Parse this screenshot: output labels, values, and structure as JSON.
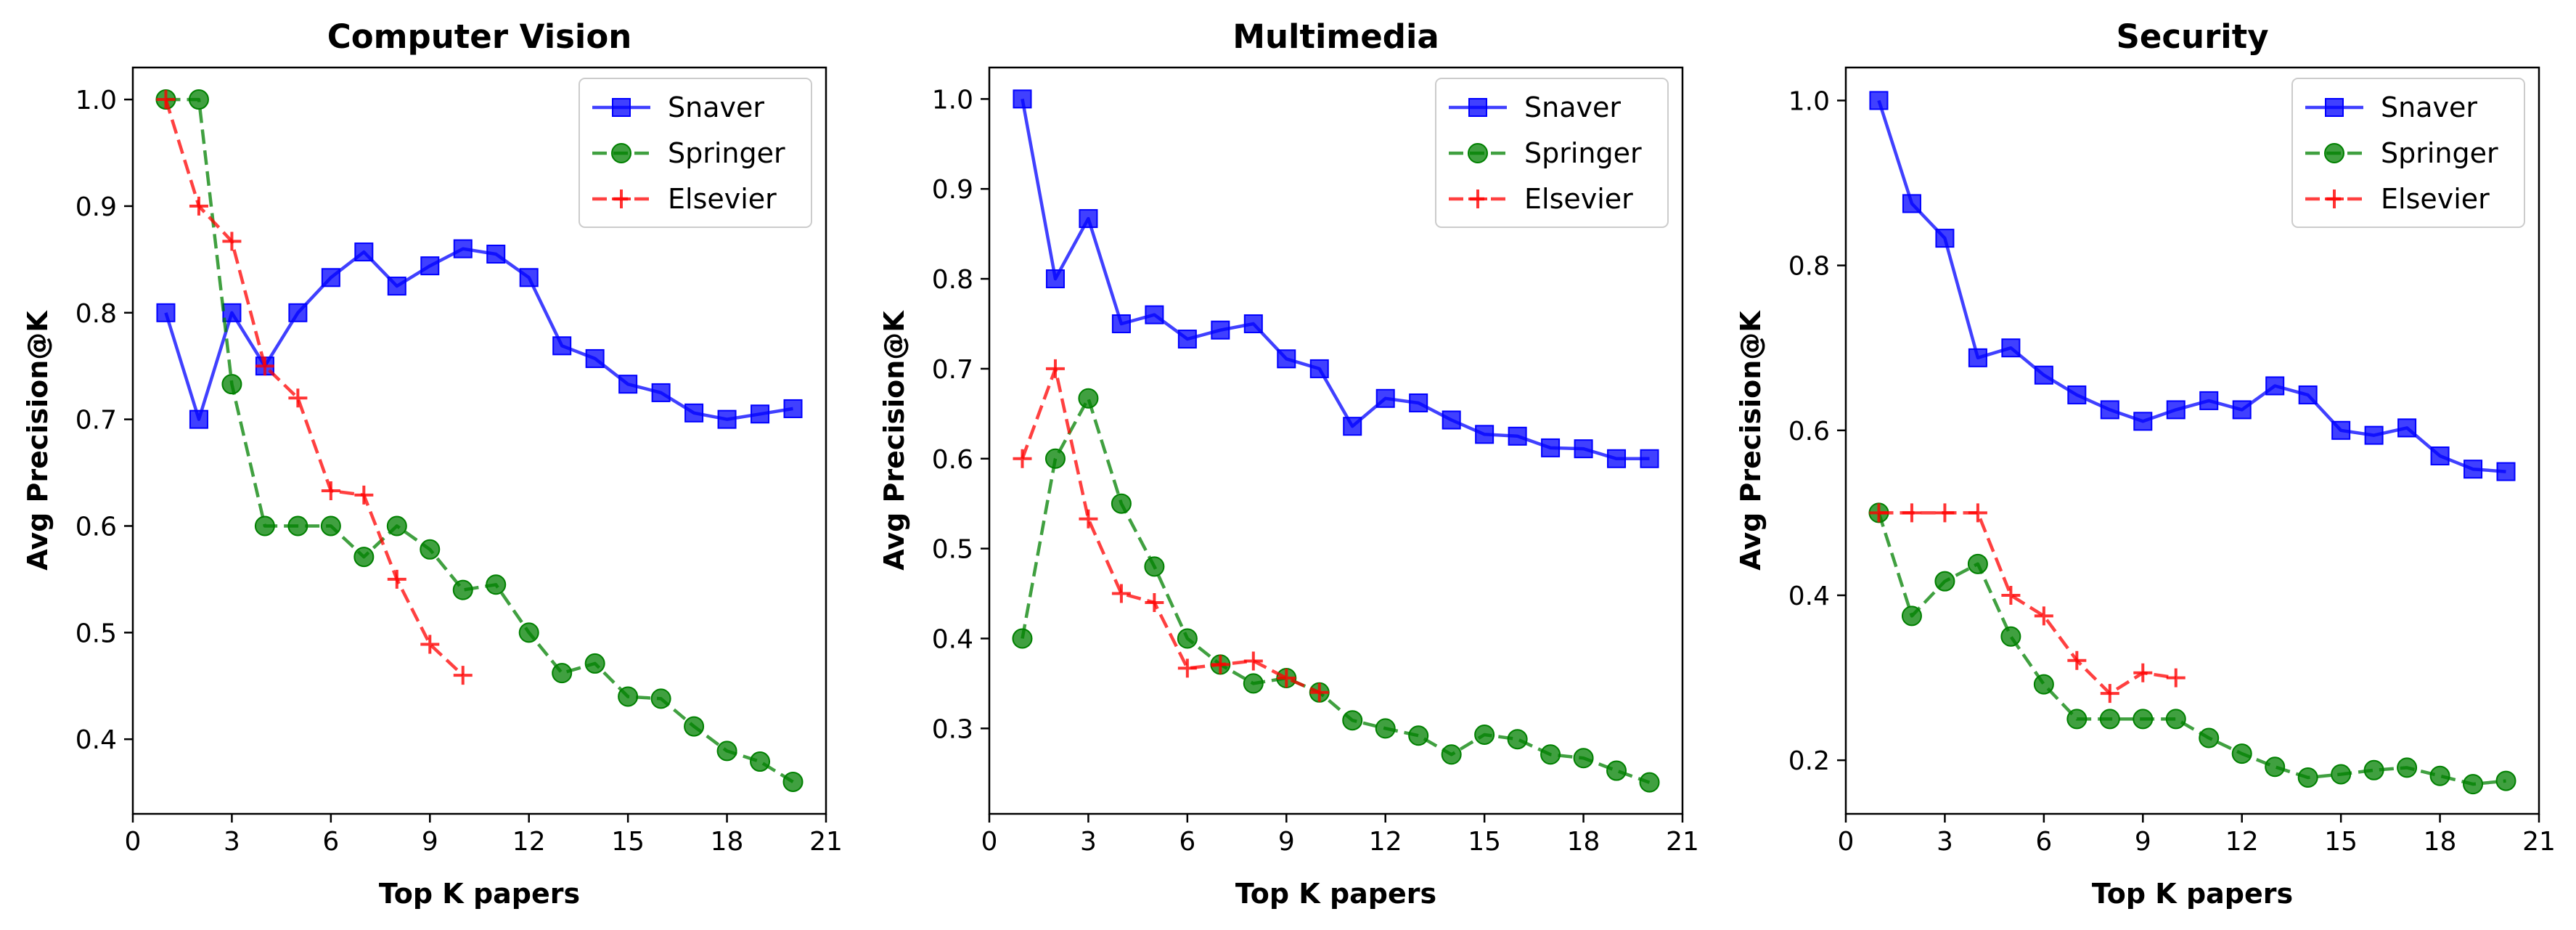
{
  "chart_data": [
    {
      "type": "line",
      "title": "Computer Vision",
      "xlabel": "Top K papers",
      "ylabel": "Avg Precision@K",
      "xlim": [
        0,
        21
      ],
      "ylim": [
        0.33,
        1.03
      ],
      "xticks": [
        0,
        3,
        6,
        9,
        12,
        15,
        18,
        21
      ],
      "yticks": [
        0.4,
        0.5,
        0.6,
        0.7,
        0.8,
        0.9,
        1.0
      ],
      "ytick_labels": [
        "0.4",
        "0.5",
        "0.6",
        "0.7",
        "0.8",
        "0.9",
        "1.0"
      ],
      "grid": false,
      "legend_position": "top-right",
      "series": [
        {
          "name": "Snaver",
          "color": "#0000ff",
          "linestyle": "solid",
          "marker": "square",
          "x": [
            1,
            2,
            3,
            4,
            5,
            6,
            7,
            8,
            9,
            10,
            11,
            12,
            13,
            14,
            15,
            16,
            17,
            18,
            19,
            20
          ],
          "y": [
            0.8,
            0.7,
            0.8,
            0.75,
            0.8,
            0.833,
            0.857,
            0.825,
            0.844,
            0.86,
            0.855,
            0.833,
            0.769,
            0.757,
            0.733,
            0.725,
            0.706,
            0.7,
            0.705,
            0.71
          ]
        },
        {
          "name": "Springer",
          "color": "#008000",
          "linestyle": "dashed",
          "marker": "circle",
          "x": [
            1,
            2,
            3,
            4,
            5,
            6,
            7,
            8,
            9,
            10,
            11,
            12,
            13,
            14,
            15,
            16,
            17,
            18,
            19,
            20
          ],
          "y": [
            1.0,
            1.0,
            0.733,
            0.6,
            0.6,
            0.6,
            0.571,
            0.6,
            0.578,
            0.54,
            0.545,
            0.5,
            0.462,
            0.471,
            0.44,
            0.438,
            0.412,
            0.389,
            0.379,
            0.36
          ]
        },
        {
          "name": "Elsevier",
          "color": "#ff0000",
          "linestyle": "dashed",
          "marker": "plus",
          "x": [
            1,
            2,
            3,
            4,
            5,
            6,
            7,
            8,
            9,
            10
          ],
          "y": [
            1.0,
            0.9,
            0.867,
            0.75,
            0.72,
            0.633,
            0.629,
            0.55,
            0.489,
            0.46
          ]
        }
      ]
    },
    {
      "type": "line",
      "title": "Multimedia",
      "xlabel": "Top K papers",
      "ylabel": "Avg Precision@K",
      "xlim": [
        0,
        21
      ],
      "ylim": [
        0.205,
        1.035
      ],
      "xticks": [
        0,
        3,
        6,
        9,
        12,
        15,
        18,
        21
      ],
      "yticks": [
        0.3,
        0.4,
        0.5,
        0.6,
        0.7,
        0.8,
        0.9,
        1.0
      ],
      "ytick_labels": [
        "0.3",
        "0.4",
        "0.5",
        "0.6",
        "0.7",
        "0.8",
        "0.9",
        "1.0"
      ],
      "grid": false,
      "legend_position": "top-right",
      "series": [
        {
          "name": "Snaver",
          "color": "#0000ff",
          "linestyle": "solid",
          "marker": "square",
          "x": [
            1,
            2,
            3,
            4,
            5,
            6,
            7,
            8,
            9,
            10,
            11,
            12,
            13,
            14,
            15,
            16,
            17,
            18,
            19,
            20
          ],
          "y": [
            1.0,
            0.8,
            0.867,
            0.75,
            0.76,
            0.733,
            0.743,
            0.75,
            0.711,
            0.7,
            0.636,
            0.667,
            0.662,
            0.643,
            0.627,
            0.625,
            0.612,
            0.611,
            0.6,
            0.6
          ]
        },
        {
          "name": "Springer",
          "color": "#008000",
          "linestyle": "dashed",
          "marker": "circle",
          "x": [
            1,
            2,
            3,
            4,
            5,
            6,
            7,
            8,
            9,
            10,
            11,
            12,
            13,
            14,
            15,
            16,
            17,
            18,
            19,
            20
          ],
          "y": [
            0.4,
            0.6,
            0.667,
            0.55,
            0.48,
            0.4,
            0.371,
            0.35,
            0.356,
            0.34,
            0.309,
            0.3,
            0.292,
            0.271,
            0.293,
            0.288,
            0.271,
            0.267,
            0.253,
            0.24
          ]
        },
        {
          "name": "Elsevier",
          "color": "#ff0000",
          "linestyle": "dashed",
          "marker": "plus",
          "x": [
            1,
            2,
            3,
            4,
            5,
            6,
            7,
            8,
            9,
            10
          ],
          "y": [
            0.6,
            0.7,
            0.533,
            0.45,
            0.44,
            0.367,
            0.371,
            0.375,
            0.356,
            0.34
          ]
        }
      ]
    },
    {
      "type": "line",
      "title": "Security",
      "xlabel": "Top K papers",
      "ylabel": "Avg Precision@K",
      "xlim": [
        0,
        21
      ],
      "ylim": [
        0.135,
        1.04
      ],
      "xticks": [
        0,
        3,
        6,
        9,
        12,
        15,
        18,
        21
      ],
      "yticks": [
        0.2,
        0.4,
        0.6,
        0.8,
        1.0
      ],
      "ytick_labels": [
        "0.2",
        "0.4",
        "0.6",
        "0.8",
        "1.0"
      ],
      "grid": false,
      "legend_position": "top-right",
      "series": [
        {
          "name": "Snaver",
          "color": "#0000ff",
          "linestyle": "solid",
          "marker": "square",
          "x": [
            1,
            2,
            3,
            4,
            5,
            6,
            7,
            8,
            9,
            10,
            11,
            12,
            13,
            14,
            15,
            16,
            17,
            18,
            19,
            20
          ],
          "y": [
            1.0,
            0.875,
            0.833,
            0.688,
            0.7,
            0.667,
            0.643,
            0.625,
            0.611,
            0.625,
            0.636,
            0.625,
            0.654,
            0.643,
            0.6,
            0.594,
            0.603,
            0.569,
            0.553,
            0.55
          ]
        },
        {
          "name": "Springer",
          "color": "#008000",
          "linestyle": "dashed",
          "marker": "circle",
          "x": [
            1,
            2,
            3,
            4,
            5,
            6,
            7,
            8,
            9,
            10,
            11,
            12,
            13,
            14,
            15,
            16,
            17,
            18,
            19,
            20
          ],
          "y": [
            0.5,
            0.375,
            0.417,
            0.438,
            0.35,
            0.292,
            0.25,
            0.25,
            0.25,
            0.25,
            0.227,
            0.208,
            0.192,
            0.179,
            0.183,
            0.188,
            0.191,
            0.181,
            0.171,
            0.175
          ]
        },
        {
          "name": "Elsevier",
          "color": "#ff0000",
          "linestyle": "dashed",
          "marker": "plus",
          "x": [
            1,
            2,
            3,
            4,
            5,
            6,
            7,
            8,
            9,
            10
          ],
          "y": [
            0.5,
            0.5,
            0.5,
            0.5,
            0.4,
            0.375,
            0.321,
            0.281,
            0.306,
            0.3
          ]
        }
      ]
    }
  ]
}
